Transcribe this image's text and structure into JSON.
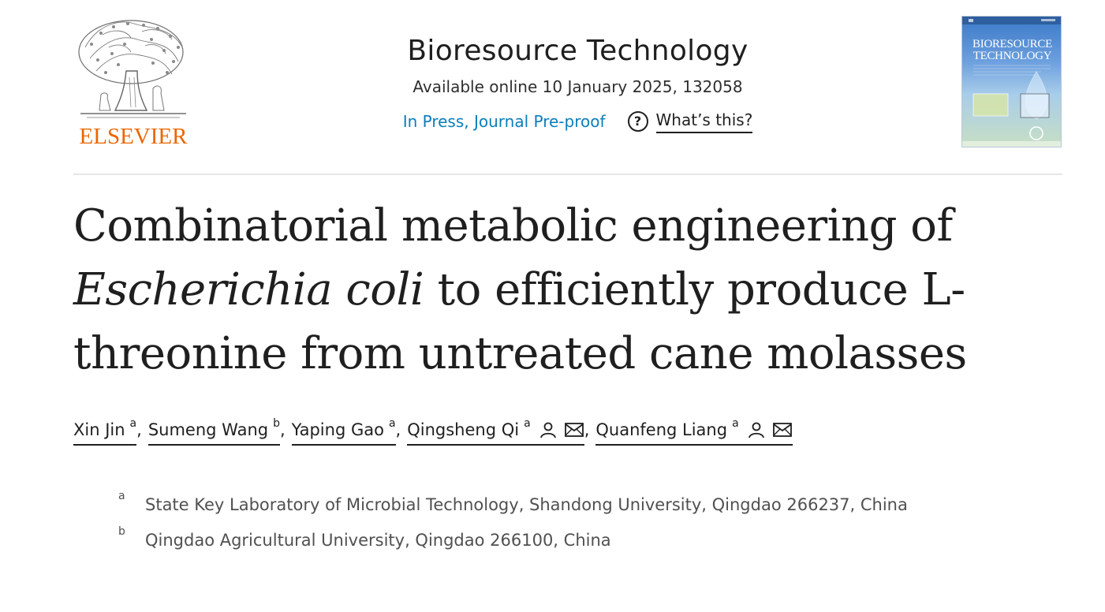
{
  "publisher": {
    "name": "ELSEVIER",
    "colors": {
      "wordmark": "#eb6500"
    }
  },
  "journal": {
    "title": "Bioresource Technology",
    "issue": "Available online 10 January 2025, 132058",
    "status_link": "In Press, Journal Pre-proof",
    "help_icon": "question-circle-icon",
    "help_label": "What’s this?",
    "cover_title_line1": "BIORESOURCE",
    "cover_title_line2": "TECHNOLOGY"
  },
  "article": {
    "title_part1": "Combinatorial metabolic engineering of",
    "title_italic": "Escherichia coli",
    "title_part2": " to efficiently produce L-",
    "title_part3": "threonine from untreated cane molasses"
  },
  "authors": [
    {
      "name": "Xin Jin",
      "affil": "a",
      "icons": []
    },
    {
      "name": "Sumeng Wang",
      "affil": "b",
      "icons": []
    },
    {
      "name": "Yaping Gao",
      "affil": "a",
      "icons": []
    },
    {
      "name": "Qingsheng Qi",
      "affil": "a",
      "icons": [
        "person-icon",
        "envelope-icon"
      ]
    },
    {
      "name": "Quanfeng Liang",
      "affil": "a",
      "icons": [
        "person-icon",
        "envelope-icon"
      ]
    }
  ],
  "author_separator": ",",
  "affiliations": [
    {
      "label": "a",
      "text": "State Key Laboratory of Microbial Technology, Shandong University, Qingdao 266237, China"
    },
    {
      "label": "b",
      "text": "Qingdao Agricultural University, Qingdao 266100, China"
    }
  ],
  "colors": {
    "link": "#0c7dbb",
    "text": "#1f1f1f",
    "muted": "#505050",
    "rule": "#e6e6e6"
  }
}
